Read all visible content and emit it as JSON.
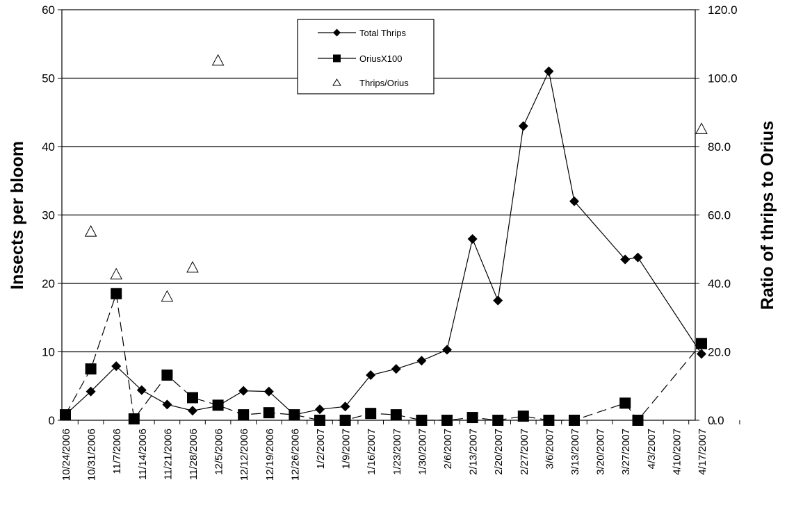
{
  "chart_data": {
    "type": "line",
    "ylabel": "Insects per bloom",
    "ylabel_right": "Ratio of thrips to Orius",
    "ylim": [
      0,
      60
    ],
    "ylim_right": [
      0,
      120
    ],
    "yticks_left": [
      "0",
      "10",
      "20",
      "30",
      "40",
      "50",
      "60"
    ],
    "yticks_right": [
      "0.0",
      "20.0",
      "40.0",
      "60.0",
      "80.0",
      "100.0",
      "120.0"
    ],
    "grid": true,
    "legend_position": "top-center",
    "categories": [
      "10/24/2006",
      "10/31/2006",
      "11/7/2006",
      "11/14/2006",
      "11/21/2006",
      "11/28/2006",
      "12/5/2006",
      "12/12/2006",
      "12/19/2006",
      "12/26/2006",
      "1/2/2007",
      "1/9/2007",
      "1/16/2007",
      "1/23/2007",
      "1/30/2007",
      "2/6/2007",
      "2/13/2007",
      "2/20/2007",
      "2/27/2007",
      "3/6/2007",
      "3/13/2007",
      "3/20/2007",
      "3/27/2007",
      "4/3/2007",
      "4/10/2007",
      "4/17/2007"
    ],
    "series": [
      {
        "name": "Total Thrips",
        "axis": "left",
        "marker": "diamond",
        "line": "solid",
        "points": [
          {
            "i": 0,
            "y": 0.8
          },
          {
            "i": 1,
            "y": 4.2
          },
          {
            "i": 2,
            "y": 7.9
          },
          {
            "i": 3,
            "y": 4.4
          },
          {
            "i": 4,
            "y": 2.3
          },
          {
            "i": 5,
            "y": 1.4
          },
          {
            "i": 6,
            "y": 2.1
          },
          {
            "i": 7,
            "y": 4.3
          },
          {
            "i": 8,
            "y": 4.2
          },
          {
            "i": 9,
            "y": 0.8
          },
          {
            "i": 10,
            "y": 1.6
          },
          {
            "i": 11,
            "y": 2.0
          },
          {
            "i": 12,
            "y": 6.6
          },
          {
            "i": 13,
            "y": 7.5
          },
          {
            "i": 14,
            "y": 8.7
          },
          {
            "i": 15,
            "y": 10.3
          },
          {
            "i": 16,
            "y": 26.5
          },
          {
            "i": 17,
            "y": 17.5
          },
          {
            "i": 18,
            "y": 43.0
          },
          {
            "i": 19,
            "y": 51.0
          },
          {
            "i": 20,
            "y": 32.0
          },
          {
            "i": 22,
            "y": 23.5
          },
          {
            "i": 22.5,
            "y": 23.8
          },
          {
            "i": 25,
            "y": 9.7
          }
        ]
      },
      {
        "name": "OriusX100",
        "axis": "left",
        "marker": "square",
        "line": "dashed",
        "points": [
          {
            "i": 0,
            "y": 0.8
          },
          {
            "i": 1,
            "y": 7.5
          },
          {
            "i": 2,
            "y": 18.5
          },
          {
            "i": 2.7,
            "y": 0.2
          },
          {
            "i": 4,
            "y": 6.6
          },
          {
            "i": 5,
            "y": 3.3
          },
          {
            "i": 6,
            "y": 2.2
          },
          {
            "i": 7,
            "y": 0.8
          },
          {
            "i": 8,
            "y": 1.1
          },
          {
            "i": 9,
            "y": 0.8
          },
          {
            "i": 10,
            "y": 0.0
          },
          {
            "i": 11,
            "y": 0.0
          },
          {
            "i": 12,
            "y": 1.0
          },
          {
            "i": 13,
            "y": 0.8
          },
          {
            "i": 14,
            "y": 0.0
          },
          {
            "i": 15,
            "y": 0.0
          },
          {
            "i": 16,
            "y": 0.4
          },
          {
            "i": 17,
            "y": 0.0
          },
          {
            "i": 18,
            "y": 0.6
          },
          {
            "i": 19,
            "y": 0.0
          },
          {
            "i": 20,
            "y": 0.0
          },
          {
            "i": 22,
            "y": 2.5
          },
          {
            "i": 22.5,
            "y": 0.0
          },
          {
            "i": 25,
            "y": 11.2
          }
        ]
      },
      {
        "name": "Thrips/Orius",
        "axis": "right",
        "marker": "triangle-open",
        "line": "none",
        "points": [
          {
            "i": 1,
            "y": 55.0
          },
          {
            "i": 2,
            "y": 42.5
          },
          {
            "i": 4,
            "y": 36.0
          },
          {
            "i": 5,
            "y": 44.5
          },
          {
            "i": 6,
            "y": 105.0
          },
          {
            "i": 25,
            "y": 85.0
          }
        ]
      }
    ]
  }
}
